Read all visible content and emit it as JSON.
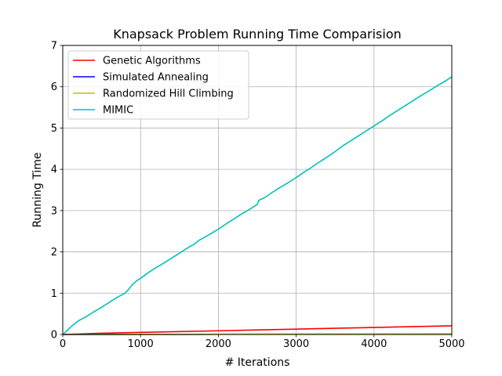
{
  "chart_data": {
    "type": "line",
    "title": "Knapsack Problem Running Time Comparision",
    "xlabel": "# Iterations",
    "ylabel": "Running Time",
    "xlim": [
      0,
      5000
    ],
    "ylim": [
      0,
      7
    ],
    "xticks": [
      0,
      1000,
      2000,
      3000,
      4000,
      5000
    ],
    "yticks": [
      0,
      1,
      2,
      3,
      4,
      5,
      6,
      7
    ],
    "grid": true,
    "legend_position": "top-left",
    "series": [
      {
        "name": "Genetic Algorithms",
        "color": "#ff0000",
        "x": [
          0,
          500,
          1000,
          1500,
          2000,
          2500,
          3000,
          3500,
          4000,
          4500,
          5000
        ],
        "y": [
          0.0,
          0.03,
          0.05,
          0.07,
          0.09,
          0.11,
          0.13,
          0.15,
          0.17,
          0.19,
          0.21
        ]
      },
      {
        "name": "Simulated Annealing",
        "color": "#0000ff",
        "x": [
          0,
          1000,
          2000,
          3000,
          4000,
          5000
        ],
        "y": [
          0.0,
          0.003,
          0.005,
          0.007,
          0.009,
          0.011
        ]
      },
      {
        "name": "Randomized Hill Climbing",
        "color": "#bfbf00",
        "x": [
          0,
          1000,
          2000,
          3000,
          4000,
          5000
        ],
        "y": [
          0.0,
          0.004,
          0.006,
          0.008,
          0.01,
          0.012
        ]
      },
      {
        "name": "MIMIC",
        "color": "#00bfbf",
        "x": [
          0,
          50,
          100,
          200,
          300,
          400,
          500,
          600,
          700,
          800,
          850,
          900,
          950,
          1000,
          1100,
          1200,
          1300,
          1400,
          1500,
          1600,
          1700,
          1750,
          1800,
          1900,
          2000,
          2100,
          2200,
          2300,
          2400,
          2500,
          2520,
          2600,
          2700,
          2800,
          2900,
          3000,
          3100,
          3200,
          3300,
          3400,
          3500,
          3600,
          3700,
          3800,
          3900,
          4000,
          4100,
          4200,
          4300,
          4400,
          4500,
          4600,
          4700,
          4800,
          4900,
          5000
        ],
        "y": [
          0.0,
          0.08,
          0.18,
          0.33,
          0.43,
          0.55,
          0.66,
          0.78,
          0.9,
          1.0,
          1.1,
          1.22,
          1.3,
          1.36,
          1.5,
          1.62,
          1.73,
          1.85,
          1.97,
          2.09,
          2.2,
          2.28,
          2.33,
          2.44,
          2.55,
          2.68,
          2.8,
          2.92,
          3.03,
          3.15,
          3.25,
          3.32,
          3.45,
          3.57,
          3.68,
          3.8,
          3.93,
          4.05,
          4.18,
          4.3,
          4.43,
          4.57,
          4.69,
          4.81,
          4.93,
          5.05,
          5.17,
          5.3,
          5.42,
          5.54,
          5.66,
          5.78,
          5.89,
          6.01,
          6.12,
          6.24
        ]
      }
    ]
  }
}
